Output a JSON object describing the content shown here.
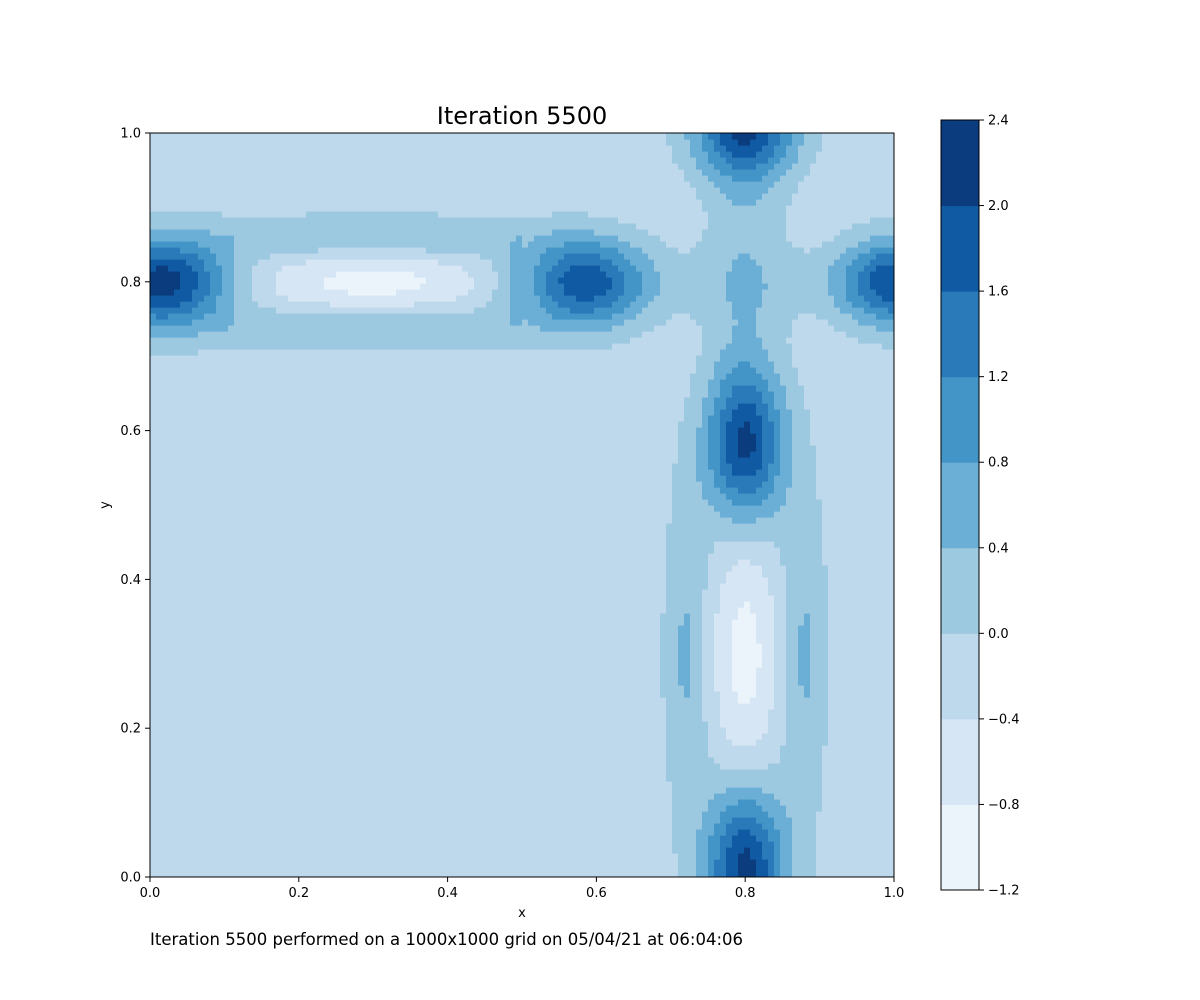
{
  "chart_data": {
    "type": "heatmap",
    "title": "Iteration 5500",
    "xlabel": "x",
    "ylabel": "y",
    "xlim": [
      0.0,
      1.0
    ],
    "ylim": [
      0.0,
      1.0
    ],
    "x_ticks": [
      "0.0",
      "0.2",
      "0.4",
      "0.6",
      "0.8",
      "1.0"
    ],
    "y_ticks": [
      "0.0",
      "0.2",
      "0.4",
      "0.6",
      "0.8",
      "1.0"
    ],
    "colorbar": {
      "levels": [
        -1.2,
        -0.8,
        -0.4,
        0.0,
        0.4,
        0.8,
        1.2,
        1.6,
        2.0,
        2.4
      ],
      "tick_labels": [
        "−1.2",
        "−0.8",
        "−0.4",
        "0.0",
        "0.4",
        "0.8",
        "1.2",
        "1.6",
        "2.0",
        "2.4"
      ],
      "colors": [
        "#ebf3fb",
        "#d6e6f4",
        "#bed8ec",
        "#9dc9e0",
        "#6baed6",
        "#4394c7",
        "#2a7aba",
        "#1059a3",
        "#0a3c7e"
      ]
    },
    "colormap": "Blues",
    "grid": false
  },
  "caption": "Iteration 5500 performed on a 1000x1000 grid on 05/04/21 at 06:04:06"
}
